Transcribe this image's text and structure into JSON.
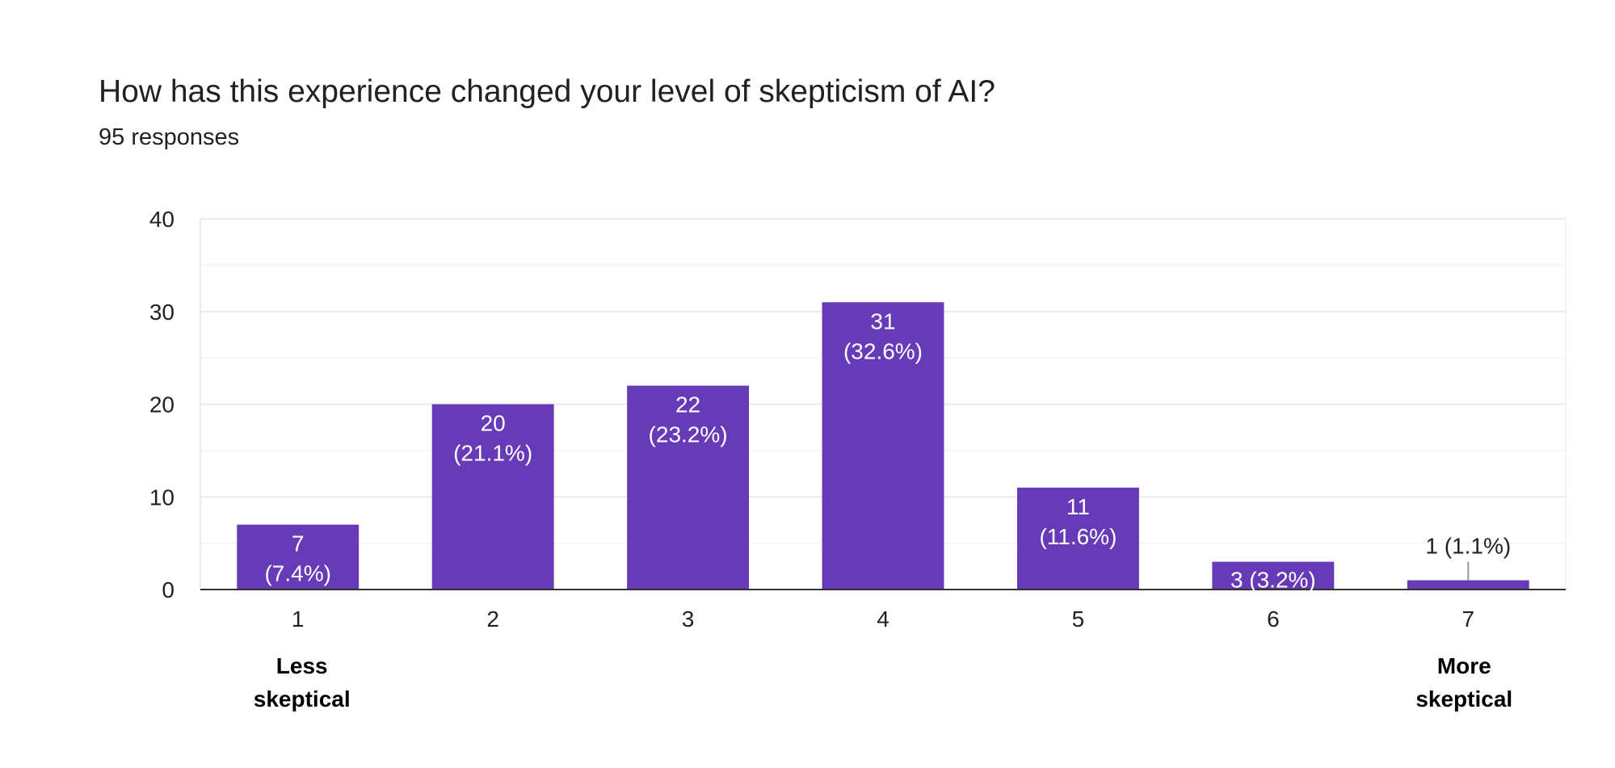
{
  "chart_data": {
    "type": "bar",
    "title": "How has this experience changed your level of skepticism of AI?",
    "subtitle": "95 responses",
    "categories": [
      "1",
      "2",
      "3",
      "4",
      "5",
      "6",
      "7"
    ],
    "values": [
      7,
      20,
      22,
      31,
      11,
      3,
      1
    ],
    "percentages": [
      "7.4%",
      "21.1%",
      "23.2%",
      "32.6%",
      "11.6%",
      "3.2%",
      "1.1%"
    ],
    "ylim": [
      0,
      40
    ],
    "yticks": [
      0,
      10,
      20,
      30,
      40
    ],
    "grid": true,
    "bar_color": "#673ab7",
    "anchor_labels": [
      {
        "category": "1",
        "lines": [
          "Less",
          "skeptical"
        ]
      },
      {
        "category": "7",
        "lines": [
          "More",
          "skeptical"
        ]
      }
    ]
  }
}
